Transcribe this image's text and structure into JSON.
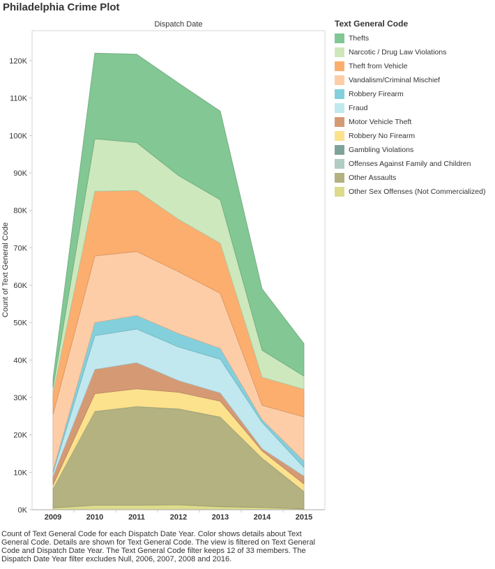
{
  "title": "Philadelphia Crime Plot",
  "caption": "Count of Text General Code for each Dispatch Date Year.  Color shows details about Text General Code.  Details are shown for Text General Code. The view is filtered on Text General Code and Dispatch Date Year. The Text General Code filter keeps 12 of 33 members. The Dispatch Date Year filter excludes Null, 2006, 2007, 2008 and 2016.",
  "chart_data": {
    "type": "area",
    "stacked": true,
    "title": "Dispatch Date",
    "ylabel": "Count of Text General Code",
    "xlabel": "",
    "ylim": [
      0,
      128000
    ],
    "yticks": [
      0,
      10000,
      20000,
      30000,
      40000,
      50000,
      60000,
      70000,
      80000,
      90000,
      100000,
      110000,
      120000
    ],
    "ytick_labels": [
      "0K",
      "10K",
      "20K",
      "30K",
      "40K",
      "50K",
      "60K",
      "70K",
      "80K",
      "90K",
      "100K",
      "110K",
      "120K"
    ],
    "categories": [
      "2009",
      "2010",
      "2011",
      "2012",
      "2013",
      "2014",
      "2015"
    ],
    "grid": false,
    "legend_title": "Text General Code",
    "legend_position": "right",
    "series": [
      {
        "name": "Other Sex Offenses (Not Commercialized)",
        "color": "#dcdc8c",
        "values": [
          500,
          1200,
          1200,
          1300,
          800,
          600,
          200
        ]
      },
      {
        "name": "Other Assaults",
        "color": "#b3b280",
        "values": [
          5000,
          25000,
          26300,
          25600,
          23900,
          13100,
          4600
        ]
      },
      {
        "name": "Offenses Against Family and Children",
        "color": "#b1ccc3",
        "values": [
          50,
          50,
          50,
          50,
          50,
          50,
          50
        ]
      },
      {
        "name": "Gambling Violations",
        "color": "#7fa39b",
        "values": [
          50,
          50,
          50,
          50,
          50,
          50,
          50
        ]
      },
      {
        "name": "Robbery No Firearm",
        "color": "#fce28c",
        "values": [
          1000,
          4700,
          4700,
          4400,
          4200,
          1900,
          2000
        ]
      },
      {
        "name": "Motor Vehicle Theft",
        "color": "#d59a74",
        "values": [
          2300,
          6500,
          7000,
          3100,
          2200,
          600,
          2100
        ]
      },
      {
        "name": "Fraud",
        "color": "#c1e8ef",
        "values": [
          1000,
          9000,
          9000,
          9000,
          9000,
          7000,
          2300
        ]
      },
      {
        "name": "Robbery Firearm",
        "color": "#83d0dc",
        "values": [
          500,
          3500,
          3600,
          3600,
          2900,
          800,
          1700
        ]
      },
      {
        "name": "Vandalism/Criminal Mischief",
        "color": "#fdcda8",
        "values": [
          15000,
          17800,
          17100,
          16500,
          14700,
          3800,
          11800
        ]
      },
      {
        "name": "Theft from Vehicle",
        "color": "#fcae6e",
        "values": [
          5600,
          17300,
          16300,
          14000,
          13400,
          7500,
          7400
        ]
      },
      {
        "name": "Narcotic / Drug Law Violations",
        "color": "#cde8bd",
        "values": [
          1500,
          14000,
          12800,
          11700,
          11600,
          7200,
          3500
        ]
      },
      {
        "name": "Thefts",
        "color": "#82c794",
        "values": [
          2500,
          22900,
          23600,
          24700,
          23700,
          16400,
          8700
        ]
      }
    ],
    "legend_order": [
      "Thefts",
      "Narcotic / Drug Law Violations",
      "Theft from Vehicle",
      "Vandalism/Criminal Mischief",
      "Robbery Firearm",
      "Fraud",
      "Motor Vehicle Theft",
      "Robbery No Firearm",
      "Gambling Violations",
      "Offenses Against Family and Children",
      "Other Assaults",
      "Other Sex Offenses (Not Commercialized)"
    ]
  }
}
